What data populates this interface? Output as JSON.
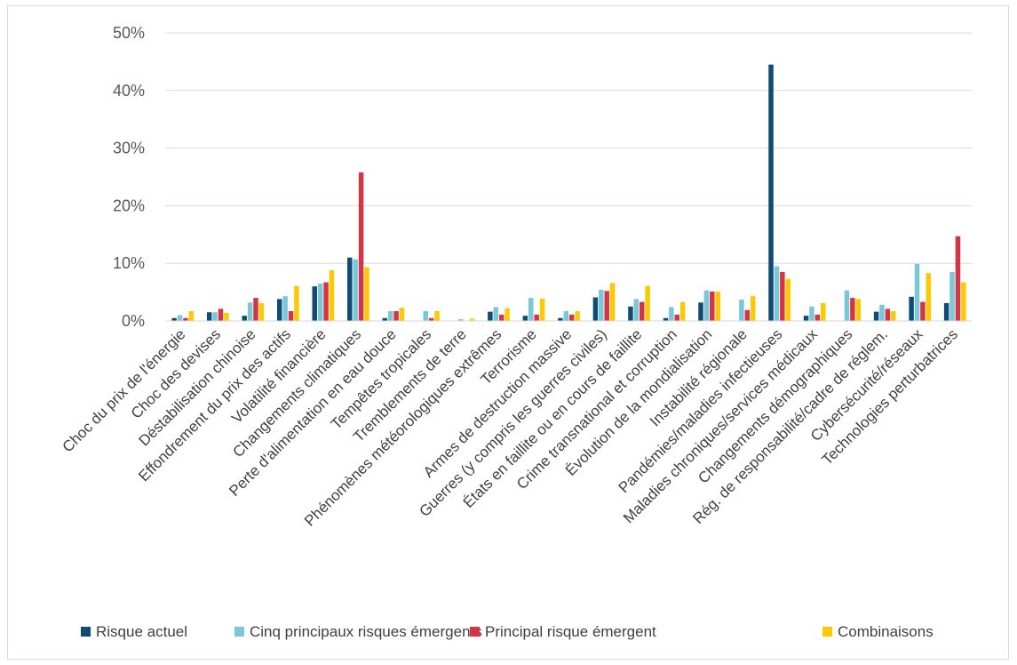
{
  "chart_data": {
    "type": "bar",
    "title": "",
    "xlabel": "",
    "ylabel": "",
    "ylim": [
      0,
      50
    ],
    "y_ticks": [
      "0%",
      "10%",
      "20%",
      "30%",
      "40%",
      "50%"
    ],
    "grid": true,
    "legend_position": "bottom",
    "categories": [
      "Choc du prix de l'énergie",
      "Choc des devises",
      "Déstabilisation chinoise",
      "Effondrement du prix des actifs",
      "Volatilité financière",
      "Changements climatiques",
      "Perte d'alimentation en eau douce",
      "Tempêtes tropicales",
      "Tremblements de terre",
      "Phénomènes météorologiques extrêmes",
      "Terrorisme",
      "Armes de destruction massive",
      "Guerres (y compris les guerres civiles)",
      "États en faillite ou en cours de faillite",
      "Crime transnational et corruption",
      "Évolution de la mondialisation",
      "Instabilité régionale",
      "Pandémies/maladies infectieuses",
      "Maladies chroniques/services médicaux",
      "Changements démographiques",
      "Rég. de responsabilité/cadre de réglem.",
      "Cybersécurité/réseaux",
      "Technologies perturbatrices"
    ],
    "series": [
      {
        "name": "Risque actuel",
        "color": "#0e4c73",
        "values": [
          0.5,
          1.5,
          0.9,
          3.8,
          6.0,
          11.0,
          0.5,
          0,
          0,
          1.6,
          0.9,
          0.5,
          4.1,
          2.5,
          0.5,
          3.2,
          0,
          44.5,
          0.9,
          0,
          1.6,
          4.2,
          3.1
        ]
      },
      {
        "name": "Cinq principaux risques émergents",
        "color": "#7ac7d8",
        "values": [
          1.0,
          1.5,
          3.2,
          4.3,
          6.5,
          10.7,
          1.7,
          1.7,
          0.3,
          2.4,
          4.0,
          1.7,
          5.4,
          3.8,
          2.4,
          5.3,
          3.7,
          9.5,
          2.5,
          5.3,
          2.8,
          9.9,
          8.5
        ]
      },
      {
        "name": "Principal risque émergent",
        "color": "#d43545",
        "values": [
          0.5,
          2.1,
          4.0,
          1.7,
          6.7,
          25.8,
          1.7,
          0.5,
          0,
          1.1,
          1.1,
          1.1,
          5.2,
          3.3,
          1.1,
          5.1,
          1.9,
          8.5,
          1.1,
          4.0,
          2.1,
          3.3,
          14.7
        ]
      },
      {
        "name": "Combinaisons",
        "color": "#fcc904",
        "values": [
          1.7,
          1.4,
          3.1,
          6.1,
          8.8,
          9.3,
          2.3,
          1.7,
          0.4,
          2.2,
          3.9,
          1.7,
          6.6,
          6.1,
          3.3,
          5.1,
          4.3,
          7.3,
          3.1,
          3.8,
          1.7,
          8.3,
          6.7
        ]
      }
    ]
  }
}
